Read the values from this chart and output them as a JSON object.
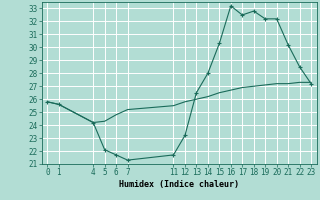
{
  "title": "",
  "xlabel": "Humidex (Indice chaleur)",
  "bg_color": "#b2ddd4",
  "grid_color": "#ffffff",
  "line_color": "#1a6b5a",
  "hours": [
    0,
    1,
    4,
    5,
    6,
    7,
    11,
    12,
    13,
    14,
    15,
    16,
    17,
    18,
    19,
    20,
    21,
    22,
    23
  ],
  "humidex": [
    25.8,
    25.6,
    24.2,
    22.1,
    21.7,
    21.3,
    21.7,
    23.2,
    26.5,
    28.0,
    30.3,
    33.2,
    32.5,
    32.8,
    32.2,
    32.2,
    30.2,
    28.5,
    27.2
  ],
  "trend": [
    25.8,
    25.6,
    24.2,
    24.3,
    24.8,
    25.2,
    25.5,
    25.8,
    26.0,
    26.2,
    26.5,
    26.7,
    26.9,
    27.0,
    27.1,
    27.2,
    27.2,
    27.3,
    27.3
  ],
  "xlim": [
    -0.5,
    23.5
  ],
  "ylim": [
    21.0,
    33.5
  ],
  "yticks": [
    21,
    22,
    23,
    24,
    25,
    26,
    27,
    28,
    29,
    30,
    31,
    32,
    33
  ],
  "xticks": [
    0,
    1,
    4,
    5,
    6,
    7,
    11,
    12,
    13,
    14,
    15,
    16,
    17,
    18,
    19,
    20,
    21,
    22,
    23
  ],
  "tick_fontsize": 5.5,
  "xlabel_fontsize": 6.0
}
